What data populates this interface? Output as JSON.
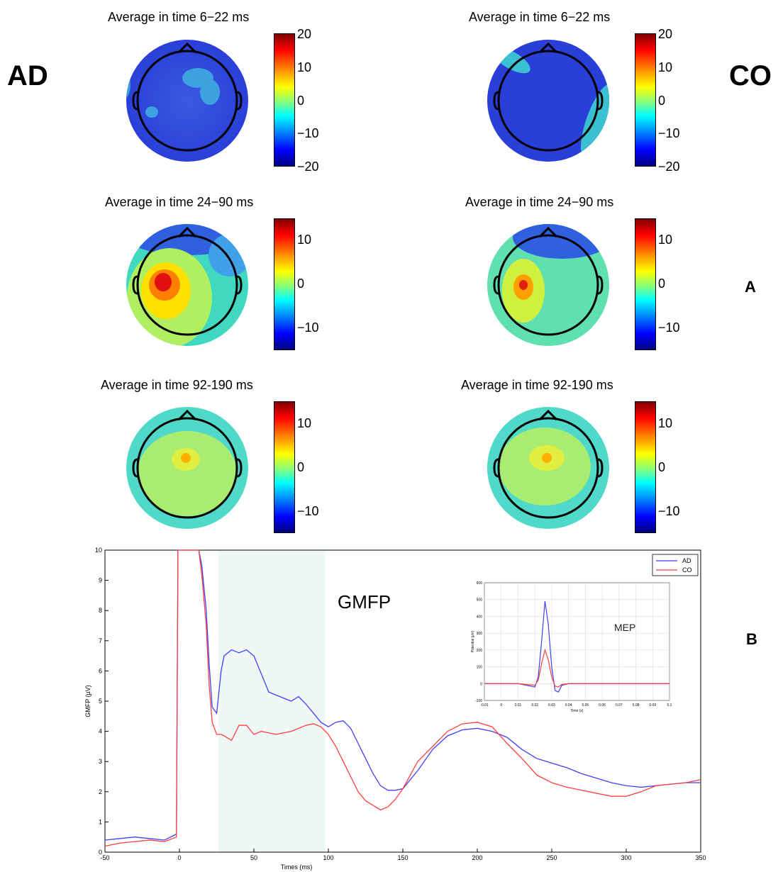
{
  "group_labels": {
    "left": "AD",
    "right": "CO"
  },
  "panel_labels": {
    "a": "A",
    "b": "B"
  },
  "topomaps": [
    {
      "title": "Average in time 6−22 ms",
      "ticks": [
        "20",
        "10",
        "0",
        "−10",
        "−20"
      ]
    },
    {
      "title": "Average in time 6−22 ms",
      "ticks": [
        "20",
        "10",
        "0",
        "−10",
        "−20"
      ]
    },
    {
      "title": "Average in time 24−90 ms",
      "ticks": [
        "10",
        "0",
        "−10"
      ]
    },
    {
      "title": "Average in time 24−90 ms",
      "ticks": [
        "10",
        "0",
        "−10"
      ]
    },
    {
      "title": "Average in time 92-190 ms",
      "ticks": [
        "10",
        "0",
        "−10"
      ]
    },
    {
      "title": "Average in time 92-190 ms",
      "ticks": [
        "10",
        "0",
        "−10"
      ]
    }
  ],
  "chart_data": [
    {
      "type": "line",
      "title": "GMFP",
      "xlabel": "Times (ms)",
      "ylabel": "GMFP (µV)",
      "xlim": [
        -50,
        350
      ],
      "ylim": [
        0,
        10
      ],
      "xticks": [
        "-50",
        "0",
        "50",
        "100",
        "150",
        "200",
        "250",
        "300",
        "350"
      ],
      "yticks": [
        "0",
        "1",
        "2",
        "3",
        "4",
        "5",
        "6",
        "7",
        "8",
        "9",
        "10"
      ],
      "shaded_region": [
        26,
        98
      ],
      "legend": {
        "placement": "top-right",
        "entries": [
          "AD",
          "CO"
        ]
      },
      "series": [
        {
          "name": "AD",
          "color": "#3f3fff",
          "x": [
            -50,
            -40,
            -30,
            -20,
            -10,
            -2,
            -1,
            0,
            5,
            10,
            13,
            15,
            18,
            20,
            22,
            25,
            28,
            30,
            35,
            40,
            45,
            50,
            55,
            60,
            65,
            70,
            75,
            80,
            85,
            90,
            95,
            100,
            105,
            110,
            115,
            120,
            125,
            130,
            135,
            140,
            145,
            150,
            160,
            170,
            180,
            190,
            200,
            210,
            220,
            230,
            240,
            250,
            260,
            270,
            280,
            290,
            300,
            310,
            320,
            330,
            340,
            350
          ],
          "y": [
            0.4,
            0.45,
            0.5,
            0.45,
            0.4,
            0.6,
            10,
            10,
            10,
            10,
            10,
            9.5,
            8,
            6.2,
            4.8,
            4.6,
            6.0,
            6.5,
            6.7,
            6.6,
            6.7,
            6.5,
            5.9,
            5.3,
            5.2,
            5.1,
            5.0,
            5.15,
            4.9,
            4.6,
            4.3,
            4.15,
            4.3,
            4.35,
            4.1,
            3.6,
            3.1,
            2.6,
            2.2,
            2.05,
            2.05,
            2.1,
            2.7,
            3.4,
            3.85,
            4.05,
            4.1,
            4.0,
            3.8,
            3.4,
            3.1,
            2.95,
            2.8,
            2.6,
            2.45,
            2.3,
            2.2,
            2.15,
            2.2,
            2.25,
            2.3,
            2.3
          ]
        },
        {
          "name": "CO",
          "color": "#ff3f3f",
          "x": [
            -50,
            -40,
            -30,
            -20,
            -10,
            -2,
            -1,
            0,
            5,
            10,
            13,
            15,
            18,
            20,
            22,
            25,
            28,
            30,
            35,
            40,
            45,
            50,
            55,
            60,
            65,
            70,
            75,
            80,
            85,
            90,
            95,
            100,
            105,
            110,
            115,
            120,
            125,
            130,
            135,
            140,
            145,
            150,
            160,
            170,
            180,
            190,
            200,
            210,
            220,
            230,
            240,
            250,
            260,
            270,
            280,
            290,
            300,
            310,
            320,
            330,
            340,
            350
          ],
          "y": [
            0.2,
            0.3,
            0.35,
            0.4,
            0.35,
            0.5,
            10,
            10,
            10,
            10,
            10,
            9.2,
            7.5,
            5.5,
            4.3,
            3.9,
            3.9,
            3.85,
            3.7,
            4.2,
            4.2,
            3.9,
            4.0,
            3.95,
            3.9,
            3.95,
            4.0,
            4.1,
            4.2,
            4.25,
            4.15,
            3.9,
            3.5,
            3.0,
            2.5,
            2.0,
            1.7,
            1.55,
            1.4,
            1.5,
            1.75,
            2.1,
            3.0,
            3.5,
            4.0,
            4.25,
            4.3,
            4.15,
            3.6,
            3.1,
            2.55,
            2.3,
            2.15,
            2.05,
            1.95,
            1.85,
            1.85,
            2.0,
            2.2,
            2.25,
            2.3,
            2.4
          ]
        }
      ]
    },
    {
      "type": "line",
      "title": "MEP",
      "xlabel": "Time (s)",
      "ylabel": "Potential (µV)",
      "xlim": [
        -0.01,
        0.1
      ],
      "ylim": [
        -100,
        600
      ],
      "xticks": [
        "-0.01",
        "0",
        "0.01",
        "0.02",
        "0.03",
        "0.04",
        "0.05",
        "0.06",
        "0.07",
        "0.08",
        "0.09",
        "0.1"
      ],
      "yticks": [
        "-100",
        "0",
        "100",
        "200",
        "300",
        "400",
        "500",
        "600"
      ],
      "series": [
        {
          "name": "AD",
          "color": "#3f3fff",
          "x": [
            -0.01,
            0.0,
            0.01,
            0.015,
            0.02,
            0.022,
            0.024,
            0.026,
            0.028,
            0.03,
            0.032,
            0.034,
            0.036,
            0.04,
            0.05,
            0.06,
            0.07,
            0.08,
            0.09,
            0.1
          ],
          "y": [
            0,
            0,
            0,
            -10,
            -20,
            40,
            250,
            490,
            350,
            100,
            -40,
            -50,
            -10,
            0,
            0,
            0,
            0,
            0,
            0,
            0
          ]
        },
        {
          "name": "CO",
          "color": "#ff3f3f",
          "x": [
            -0.01,
            0.0,
            0.01,
            0.015,
            0.02,
            0.022,
            0.024,
            0.026,
            0.028,
            0.03,
            0.032,
            0.034,
            0.036,
            0.04,
            0.05,
            0.06,
            0.07,
            0.08,
            0.09,
            0.1
          ],
          "y": [
            0,
            0,
            0,
            -5,
            -10,
            20,
            120,
            200,
            140,
            40,
            -15,
            -20,
            -5,
            0,
            0,
            0,
            0,
            0,
            0,
            0
          ]
        }
      ]
    }
  ]
}
